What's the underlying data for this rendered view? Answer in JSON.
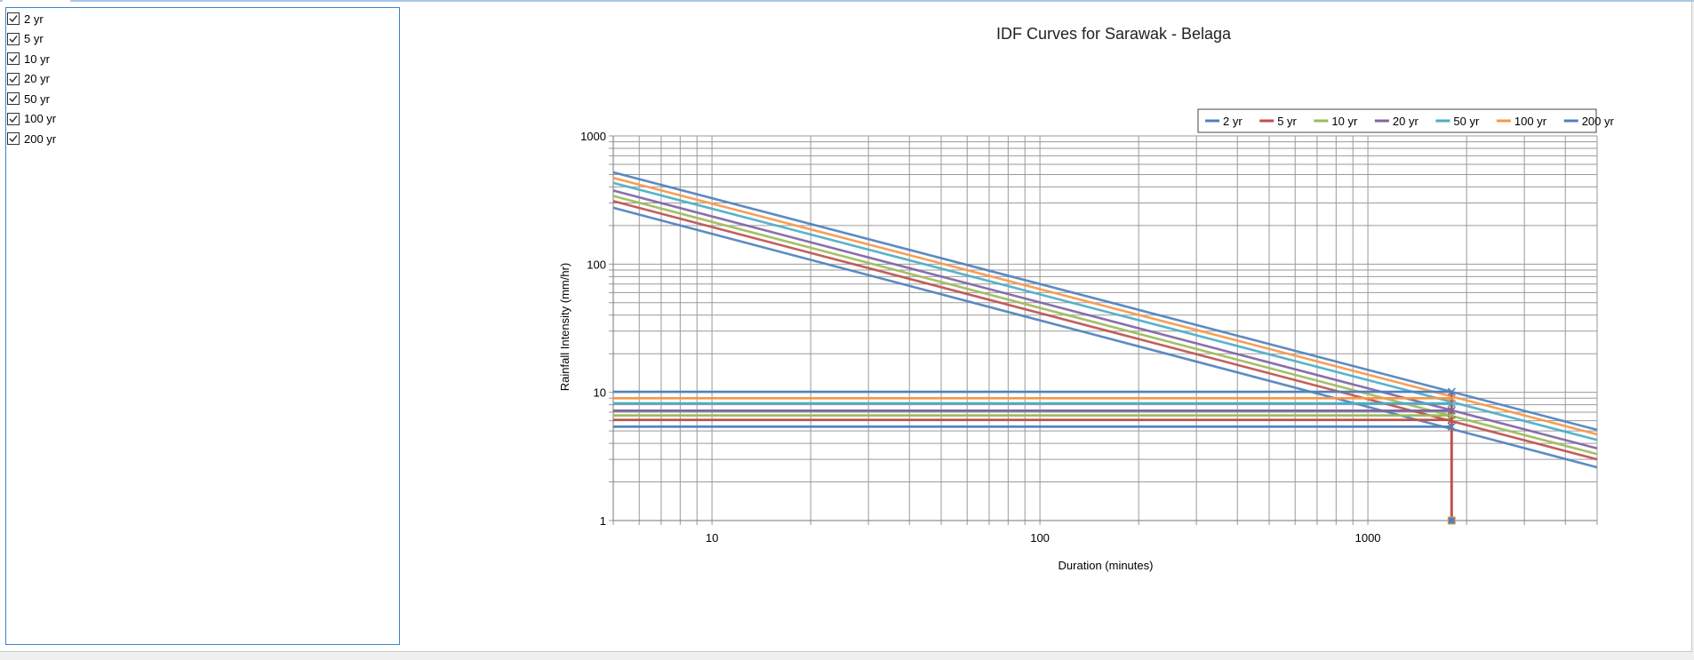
{
  "series_panel": {
    "items": [
      {
        "label": "2 yr",
        "checked": true
      },
      {
        "label": "5 yr",
        "checked": true
      },
      {
        "label": "10 yr",
        "checked": true
      },
      {
        "label": "20 yr",
        "checked": true
      },
      {
        "label": "50 yr",
        "checked": true
      },
      {
        "label": "100 yr",
        "checked": true
      },
      {
        "label": "200 yr",
        "checked": true
      }
    ]
  },
  "chart_data": {
    "type": "line",
    "title": "IDF Curves for Sarawak - Belaga",
    "xlabel": "Duration (minutes)",
    "ylabel": "Rainfall Intensity (mm/hr)",
    "x_scale": "log",
    "y_scale": "log",
    "xlim": [
      5,
      5000
    ],
    "ylim": [
      1,
      1000
    ],
    "x_ticks": [
      10,
      100,
      1000
    ],
    "y_ticks": [
      1,
      10,
      100,
      1000
    ],
    "grid": true,
    "legend_position": "top-right",
    "selected_duration": 1800,
    "series": [
      {
        "name": "2 yr",
        "color": "#4f81bd",
        "x": [
          5,
          5000
        ],
        "y": [
          275,
          2.6
        ],
        "marker_intensity": 5.4
      },
      {
        "name": "5 yr",
        "color": "#c0504d",
        "x": [
          5,
          5000
        ],
        "y": [
          310,
          3.0
        ],
        "marker_intensity": 6.1
      },
      {
        "name": "10 yr",
        "color": "#9bbb59",
        "x": [
          5,
          5000
        ],
        "y": [
          340,
          3.3
        ],
        "marker_intensity": 6.6
      },
      {
        "name": "20 yr",
        "color": "#8064a2",
        "x": [
          5,
          5000
        ],
        "y": [
          375,
          3.65
        ],
        "marker_intensity": 7.2
      },
      {
        "name": "50 yr",
        "color": "#4bacc6",
        "x": [
          5,
          5000
        ],
        "y": [
          430,
          4.25
        ],
        "marker_intensity": 8.2
      },
      {
        "name": "100 yr",
        "color": "#f79646",
        "x": [
          5,
          5000
        ],
        "y": [
          470,
          4.7
        ],
        "marker_intensity": 9.0
      },
      {
        "name": "200 yr",
        "color": "#4f81bd",
        "x": [
          5,
          5000
        ],
        "y": [
          520,
          5.1
        ],
        "marker_intensity": 10.1
      }
    ]
  }
}
